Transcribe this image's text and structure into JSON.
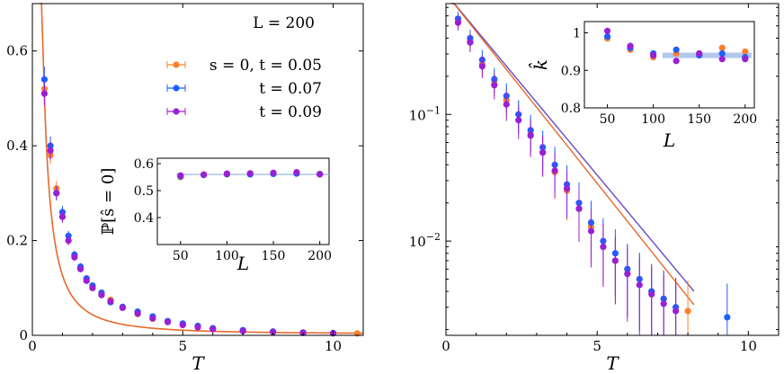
{
  "colors": {
    "t005": "#ff7f2a",
    "t007": "#1f5fff",
    "t009": "#9b1fd4",
    "fit": "#e8682a",
    "band": "#9db9ea"
  },
  "chart_data": [
    {
      "type": "scatter",
      "xlabel": "T",
      "ylabel": "",
      "xlim": [
        0,
        11
      ],
      "ylim": [
        0,
        0.7
      ],
      "xticks": [
        "0",
        "5",
        "10"
      ],
      "yticks": [
        "0",
        "0.2",
        "0.4",
        "0.6"
      ],
      "annotation": "L = 200",
      "legend": [
        "s = 0, t = 0.05",
        "t = 0.07",
        "t = 0.09"
      ],
      "legend_position": "top-right",
      "error_bars": true,
      "series": [
        {
          "name": "s = 0, t = 0.05",
          "color": "#ff7f2a",
          "x": [
            0.4,
            0.6,
            0.8,
            1.0,
            1.2,
            1.4,
            1.6,
            1.8,
            2.0,
            2.3,
            2.6,
            3.0,
            3.5,
            4.0,
            4.5,
            5.0,
            5.5,
            6.0,
            7.0,
            8.0,
            9.0,
            10.0,
            10.8
          ],
          "y": [
            0.52,
            0.38,
            0.31,
            0.25,
            0.2,
            0.17,
            0.14,
            0.12,
            0.1,
            0.09,
            0.075,
            0.06,
            0.045,
            0.035,
            0.03,
            0.022,
            0.018,
            0.014,
            0.01,
            0.007,
            0.006,
            0.005,
            0.004
          ]
        },
        {
          "name": "t = 0.07",
          "color": "#1f5fff",
          "x": [
            0.4,
            0.6,
            0.8,
            1.0,
            1.2,
            1.4,
            1.6,
            1.8,
            2.0,
            2.3,
            2.6,
            3.0,
            3.5,
            4.0,
            4.5,
            5.0,
            5.5,
            6.0,
            7.0,
            8.0,
            9.0,
            10.0
          ],
          "y": [
            0.54,
            0.4,
            0.3,
            0.26,
            0.21,
            0.17,
            0.145,
            0.12,
            0.105,
            0.09,
            0.07,
            0.06,
            0.05,
            0.04,
            0.03,
            0.025,
            0.02,
            0.015,
            0.011,
            0.008,
            0.006,
            0.005
          ]
        },
        {
          "name": "t = 0.09",
          "color": "#9b1fd4",
          "x": [
            0.4,
            0.6,
            0.8,
            1.0,
            1.2,
            1.4,
            1.6,
            1.8,
            2.0,
            2.3,
            2.6,
            3.0,
            3.5,
            4.0,
            4.5,
            5.0,
            5.5,
            6.0,
            7.0,
            8.0,
            9.0,
            10.0
          ],
          "y": [
            0.51,
            0.39,
            0.3,
            0.25,
            0.2,
            0.165,
            0.14,
            0.115,
            0.1,
            0.085,
            0.072,
            0.058,
            0.046,
            0.036,
            0.028,
            0.022,
            0.017,
            0.013,
            0.009,
            0.007,
            0.005,
            0.004
          ]
        }
      ],
      "inset": {
        "xlabel": "L",
        "ylabel": "ℙ[ŝ = 0]",
        "xlim": [
          25,
          210
        ],
        "ylim": [
          0.3,
          0.62
        ],
        "xticks": [
          "50",
          "100",
          "150",
          "200"
        ],
        "yticks": [
          "0.4",
          "0.5",
          "0.6"
        ],
        "x": [
          50,
          75,
          100,
          125,
          150,
          175,
          200
        ],
        "series": [
          {
            "name": "t = 0.05",
            "color": "#ff7f2a",
            "y": [
              0.55,
              0.56,
              0.56,
              0.562,
              0.563,
              0.565,
              0.562
            ]
          },
          {
            "name": "t = 0.07",
            "color": "#1f5fff",
            "y": [
              0.553,
              0.558,
              0.561,
              0.56,
              0.562,
              0.563,
              0.561
            ]
          },
          {
            "name": "t = 0.09",
            "color": "#9b1fd4",
            "y": [
              0.556,
              0.559,
              0.563,
              0.564,
              0.566,
              0.568,
              0.56
            ]
          }
        ],
        "reference_line": 0.56
      }
    },
    {
      "type": "scatter",
      "yscale": "log",
      "xlabel": "T",
      "ylabel": "",
      "xlim": [
        0,
        11
      ],
      "ylim": [
        0.0018,
        0.75
      ],
      "xticks": [
        "0",
        "5",
        "10"
      ],
      "yticks": [
        "10^-1",
        "10^-2"
      ],
      "error_bars": true,
      "series": [
        {
          "name": "t = 0.05",
          "color": "#ff7f2a",
          "x": [
            0.4,
            0.8,
            1.2,
            1.6,
            2.0,
            2.4,
            2.8,
            3.2,
            3.6,
            4.0,
            4.4,
            4.8,
            5.2,
            5.6,
            6.0,
            6.4,
            6.8,
            7.2,
            7.6,
            8.0
          ],
          "y": [
            0.55,
            0.38,
            0.25,
            0.18,
            0.13,
            0.1,
            0.07,
            0.05,
            0.035,
            0.025,
            0.018,
            0.013,
            0.009,
            0.007,
            0.006,
            0.005,
            0.004,
            0.0035,
            0.003,
            0.0028
          ]
        },
        {
          "name": "t = 0.07",
          "color": "#1f5fff",
          "x": [
            0.4,
            0.8,
            1.2,
            1.6,
            2.0,
            2.4,
            2.8,
            3.2,
            3.6,
            4.0,
            4.4,
            4.8,
            5.2,
            5.6,
            6.0,
            6.4,
            6.8,
            7.2,
            7.6,
            9.3
          ],
          "y": [
            0.57,
            0.4,
            0.27,
            0.19,
            0.14,
            0.1,
            0.075,
            0.055,
            0.04,
            0.028,
            0.02,
            0.014,
            0.01,
            0.008,
            0.006,
            0.005,
            0.004,
            0.0035,
            0.003,
            0.0025
          ]
        },
        {
          "name": "t = 0.09",
          "color": "#9b1fd4",
          "x": [
            0.4,
            0.8,
            1.2,
            1.6,
            2.0,
            2.4,
            2.8,
            3.2,
            3.6,
            4.0,
            4.4,
            4.8,
            5.2,
            5.6,
            6.0,
            6.4,
            6.8,
            7.2,
            7.6
          ],
          "y": [
            0.53,
            0.37,
            0.24,
            0.17,
            0.12,
            0.09,
            0.068,
            0.05,
            0.036,
            0.026,
            0.018,
            0.012,
            0.009,
            0.007,
            0.0055,
            0.0045,
            0.0038,
            0.0032,
            0.0028
          ]
        }
      ],
      "inset": {
        "xlabel": "L",
        "ylabel": "k̂",
        "xlim": [
          25,
          210
        ],
        "ylim": [
          0.8,
          1.03
        ],
        "xticks": [
          "50",
          "100",
          "150",
          "200"
        ],
        "yticks": [
          "0.8",
          "0.9",
          "1"
        ],
        "x": [
          50,
          75,
          100,
          125,
          150,
          175,
          200
        ],
        "series": [
          {
            "name": "t = 0.05",
            "color": "#ff7f2a",
            "y": [
              0.985,
              0.955,
              0.935,
              0.945,
              0.945,
              0.96,
              0.95
            ]
          },
          {
            "name": "t = 0.07",
            "color": "#1f5fff",
            "y": [
              0.99,
              0.96,
              0.945,
              0.955,
              0.94,
              0.945,
              0.935
            ]
          },
          {
            "name": "t = 0.09",
            "color": "#9b1fd4",
            "y": [
              1.005,
              0.965,
              0.94,
              0.925,
              0.945,
              0.93,
              0.93
            ]
          }
        ],
        "band_y": 0.94
      }
    }
  ]
}
